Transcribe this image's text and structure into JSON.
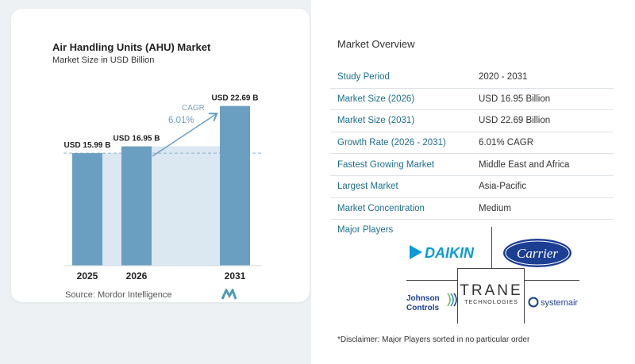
{
  "chart_data": {
    "type": "bar",
    "title": "Air Handling Units (AHU) Market",
    "subtitle": "Market Size in USD Billion",
    "categories": [
      "2025",
      "2026",
      "2031"
    ],
    "values": [
      15.99,
      16.95,
      22.69
    ],
    "value_labels": [
      "USD 15.99 B",
      "USD 16.95 B",
      "USD 22.69 B"
    ],
    "cagr_label": "CAGR",
    "cagr_value": "6.01%",
    "bar_color": "#6b9fc2",
    "shade_color": "#dbe7f1",
    "ylim": [
      0,
      24
    ]
  },
  "source": "Source:  Mordor Intelligence",
  "overview": {
    "title": "Market Overview",
    "rows": [
      {
        "key": "Study Period",
        "value": "2020 - 2031"
      },
      {
        "key": "Market Size (2026)",
        "value": "USD 16.95 Billion"
      },
      {
        "key": "Market Size (2031)",
        "value": "USD 22.69 Billion"
      },
      {
        "key": "Growth Rate (2026 - 2031)",
        "value": "6.01% CAGR"
      },
      {
        "key": "Fastest Growing Market",
        "value": "Middle East and Africa"
      },
      {
        "key": "Largest Market",
        "value": "Asia-Pacific"
      },
      {
        "key": "Market Concentration",
        "value": "Medium"
      }
    ]
  },
  "players": {
    "title": "Major Players",
    "logos": [
      "DAIKIN",
      "Carrier",
      "TRANE",
      "TECHNOLOGIES",
      "Johnson",
      "Controls",
      "systemair"
    ]
  },
  "disclaimer": "*Disclaimer: Major Players sorted in no particular order",
  "colors": {
    "accent": "#1e6f8e",
    "bar": "#6b9fc2",
    "daikin": "#0a9ad6",
    "carrier": "#1c3f94"
  }
}
